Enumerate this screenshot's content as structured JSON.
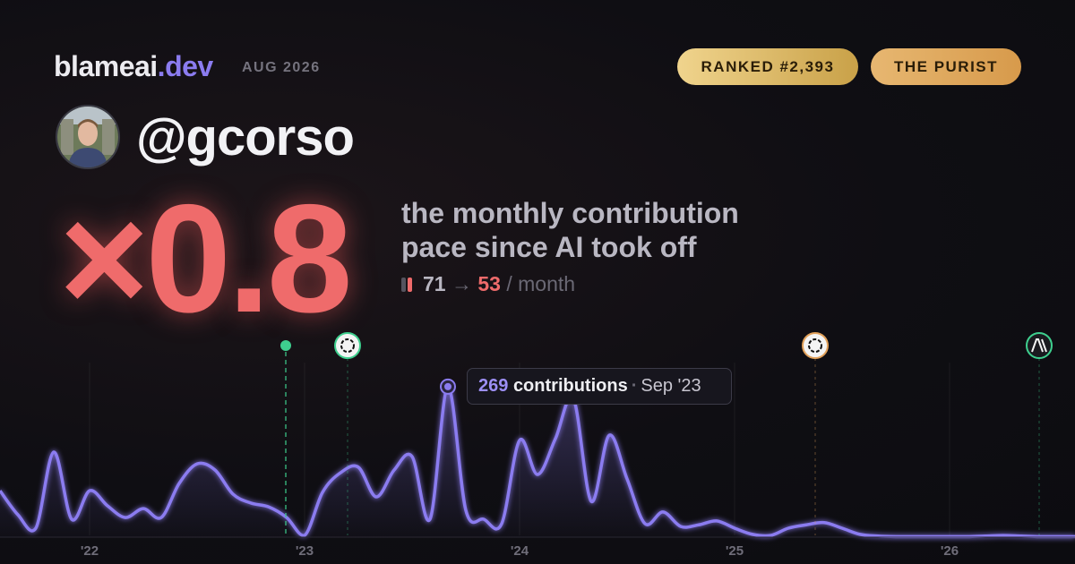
{
  "header": {
    "brand": "blameai",
    "brand_suffix": ".dev",
    "date": "AUG 2026",
    "badges": [
      "RANKED #2,393",
      "THE PURIST"
    ]
  },
  "user": {
    "handle": "@gcorso"
  },
  "headline": {
    "factor": "×0.8",
    "lines": [
      "the monthly contribution",
      "pace since AI took off"
    ],
    "before": "71",
    "arrow": "→",
    "after": "53",
    "unit": "/ month"
  },
  "tooltip": {
    "label": "contributions",
    "separator": "·",
    "date": "Sep '23"
  },
  "chart_data": {
    "type": "line",
    "color": "#8b7cf0",
    "categories": [
      null,
      null,
      null,
      null,
      null,
      "'22",
      null,
      null,
      null,
      null,
      null,
      null,
      null,
      null,
      null,
      null,
      null,
      "'23",
      null,
      null,
      null,
      null,
      null,
      null,
      null,
      null,
      null,
      null,
      null,
      "'24",
      null,
      null,
      null,
      null,
      null,
      null,
      null,
      null,
      null,
      null,
      null,
      "'25",
      null,
      null,
      null,
      null,
      null,
      null,
      null,
      null,
      null,
      null,
      null,
      "'26",
      null,
      null,
      null,
      null,
      null,
      null,
      null
    ],
    "values": [
      83,
      40,
      16,
      152,
      32,
      83,
      56,
      35,
      51,
      35,
      96,
      131,
      120,
      77,
      61,
      54,
      35,
      3,
      80,
      115,
      125,
      72,
      120,
      144,
      32,
      269,
      48,
      32,
      24,
      173,
      112,
      176,
      248,
      64,
      182,
      104,
      24,
      45,
      19,
      22,
      29,
      16,
      5,
      3,
      16,
      22,
      26,
      16,
      5,
      2,
      1,
      1,
      1,
      1,
      1,
      2,
      3,
      2,
      1,
      1,
      1
    ],
    "ylim": [
      0,
      280
    ]
  }
}
